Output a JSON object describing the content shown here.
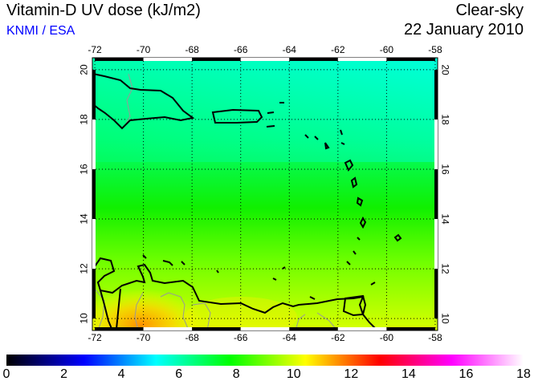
{
  "header": {
    "title": "Vitamin-D UV dose (kJ/m2)",
    "org": "KNMI / ESA",
    "condition": "Clear-sky",
    "date": "22 January 2010"
  },
  "map": {
    "lon_ticks": [
      -72,
      -70,
      -68,
      -66,
      -64,
      -62,
      -60,
      -58
    ],
    "lat_ticks": [
      10,
      12,
      14,
      16,
      18,
      20
    ],
    "lon_range": [
      -72.1,
      -57.9
    ],
    "lat_range": [
      9.52,
      20.48
    ]
  },
  "colorbar": {
    "ticks": [
      "0",
      "2",
      "4",
      "6",
      "8",
      "10",
      "12",
      "14",
      "16",
      "18"
    ],
    "range": [
      0,
      18
    ],
    "stops": [
      {
        "v": 0,
        "c": "#000000"
      },
      {
        "v": 2.7,
        "c": "#0000ff"
      },
      {
        "v": 5.2,
        "c": "#00ffff"
      },
      {
        "v": 7.8,
        "c": "#00ff00"
      },
      {
        "v": 10.4,
        "c": "#ffff00"
      },
      {
        "v": 13,
        "c": "#ff0000"
      },
      {
        "v": 15.5,
        "c": "#ff00ff"
      },
      {
        "v": 18,
        "c": "#ffffff"
      }
    ]
  }
}
